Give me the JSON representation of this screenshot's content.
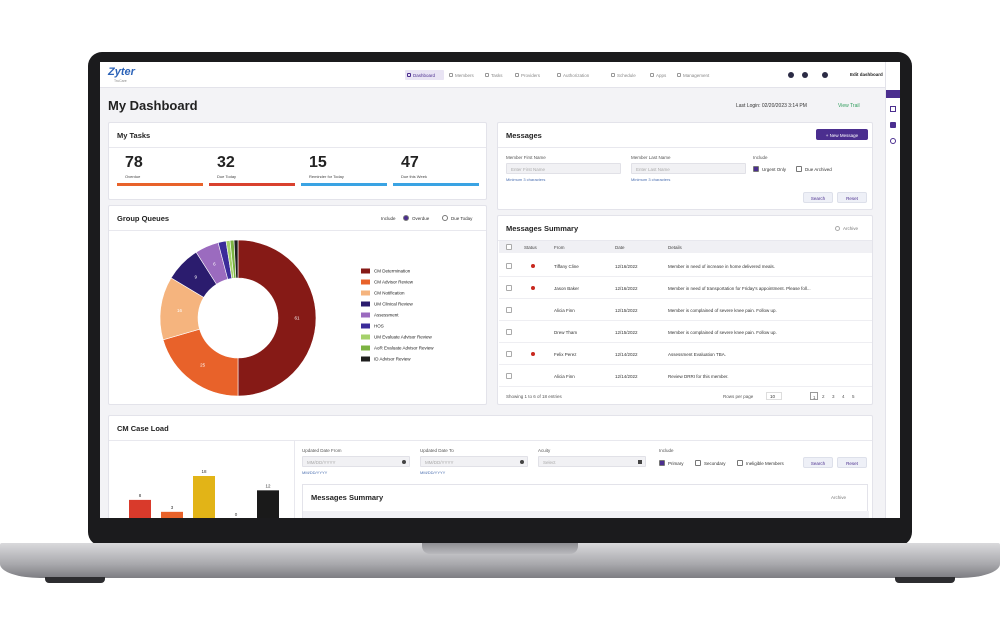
{
  "nav": {
    "logo": "Zyter",
    "logo_sub": "TruCare",
    "items": [
      "Dashboard",
      "Members",
      "Tasks",
      "Providers",
      "Authorization",
      "Schedule",
      "Apps",
      "Management"
    ],
    "edit": "Edit dashboard"
  },
  "header": {
    "title": "My Dashboard",
    "last_login": "Last Login: 02/20/2023 3:14 PM",
    "trail": "View Trail"
  },
  "tasks": {
    "title": "My Tasks",
    "items": [
      {
        "value": 78,
        "label": "Overdue",
        "color": "#e8622a"
      },
      {
        "value": 32,
        "label": "Due Today",
        "color": "#d9412f"
      },
      {
        "value": 15,
        "label": "Reminder for Today",
        "color": "#3aa3e3"
      },
      {
        "value": 47,
        "label": "Due this Week",
        "color": "#3aa3e3"
      }
    ]
  },
  "group_queues": {
    "title": "Group Queues",
    "include": "Include",
    "options": [
      "Overdue",
      "Due Today"
    ]
  },
  "chart_data": [
    {
      "type": "donut",
      "categories": [
        "CM Determination",
        "CM Advisor Review",
        "CM Notification",
        "UM Clinical Review",
        "Assessment",
        "HOS",
        "UM Evaluate Advisor Review",
        "AoR Evaluate Advisor Review",
        "ID Advisor Review"
      ],
      "values": [
        61,
        25,
        16,
        9,
        6,
        2,
        1,
        1,
        1
      ],
      "colors": [
        "#861a16",
        "#e8622a",
        "#f5b47e",
        "#2b1c6e",
        "#9b6bbf",
        "#3b2c9a",
        "#a5d16b",
        "#7cb342",
        "#1e1e1e"
      ]
    },
    {
      "type": "bar",
      "categories": [
        null,
        null,
        null,
        null,
        null
      ],
      "values": [
        8,
        3,
        18,
        0,
        12
      ],
      "colors": [
        "#d93a2b",
        "#e8622a",
        "#e2b417",
        "#888888",
        "#1a1a1a"
      ]
    }
  ],
  "messages": {
    "title": "Messages",
    "new_button": "+ New Message",
    "fields": [
      {
        "label": "Member First Name",
        "placeholder": "Enter First Name",
        "hint": "Minimum 3 characters"
      },
      {
        "label": "Member Last Name",
        "placeholder": "Enter Last Name",
        "hint": "Minimum 3 characters"
      }
    ],
    "include": "Include",
    "options": [
      "Urgent Only",
      "Due Archived"
    ],
    "buttons": [
      "Search",
      "Reset"
    ]
  },
  "summary": {
    "title": "Messages Summary",
    "archive": "Archive",
    "columns": [
      "Status",
      "From",
      "Date",
      "Details"
    ],
    "rows": [
      {
        "urgent": true,
        "from": "Tiffany Cline",
        "date": "12/16/2022",
        "details": "Member in need of increase in home delivered meals."
      },
      {
        "urgent": true,
        "from": "Jason Baker",
        "date": "12/16/2022",
        "details": "Member in need of transportation for Friday's appointment. Please foll..."
      },
      {
        "urgent": false,
        "from": "Alicia Finn",
        "date": "12/15/2022",
        "details": "Member is complained of severe knee pain. Follow up."
      },
      {
        "urgent": false,
        "from": "Drew Tham",
        "date": "12/15/2022",
        "details": "Member is complained of severe knee pain. Follow up."
      },
      {
        "urgent": true,
        "from": "Felix Perez",
        "date": "12/14/2022",
        "details": "Assessment Evaluation TBA."
      },
      {
        "urgent": false,
        "from": "Alicia Finn",
        "date": "12/14/2022",
        "details": "Review DRRI for this member."
      }
    ],
    "showing": "Showing 1 to 6 of 18 entries",
    "rows_per_page": "Rows per page",
    "page_size": 10,
    "pages": [
      1,
      2,
      3,
      4,
      5
    ]
  },
  "caseload": {
    "title": "CM Case Load",
    "fields": [
      {
        "label": "Updated Date From",
        "placeholder": "MM/DD/YYYY",
        "hint": "MM/DD/YYYY"
      },
      {
        "label": "Updated Date To",
        "placeholder": "MM/DD/YYYY",
        "hint": "MM/DD/YYYY"
      },
      {
        "label": "Acuity",
        "placeholder": "Select"
      }
    ],
    "include": "Include",
    "options": [
      "Primary",
      "Secondary",
      "Ineligible Members"
    ],
    "buttons": [
      "Search",
      "Reset"
    ],
    "summary_title": "Messages Summary",
    "archive": "Archive"
  }
}
